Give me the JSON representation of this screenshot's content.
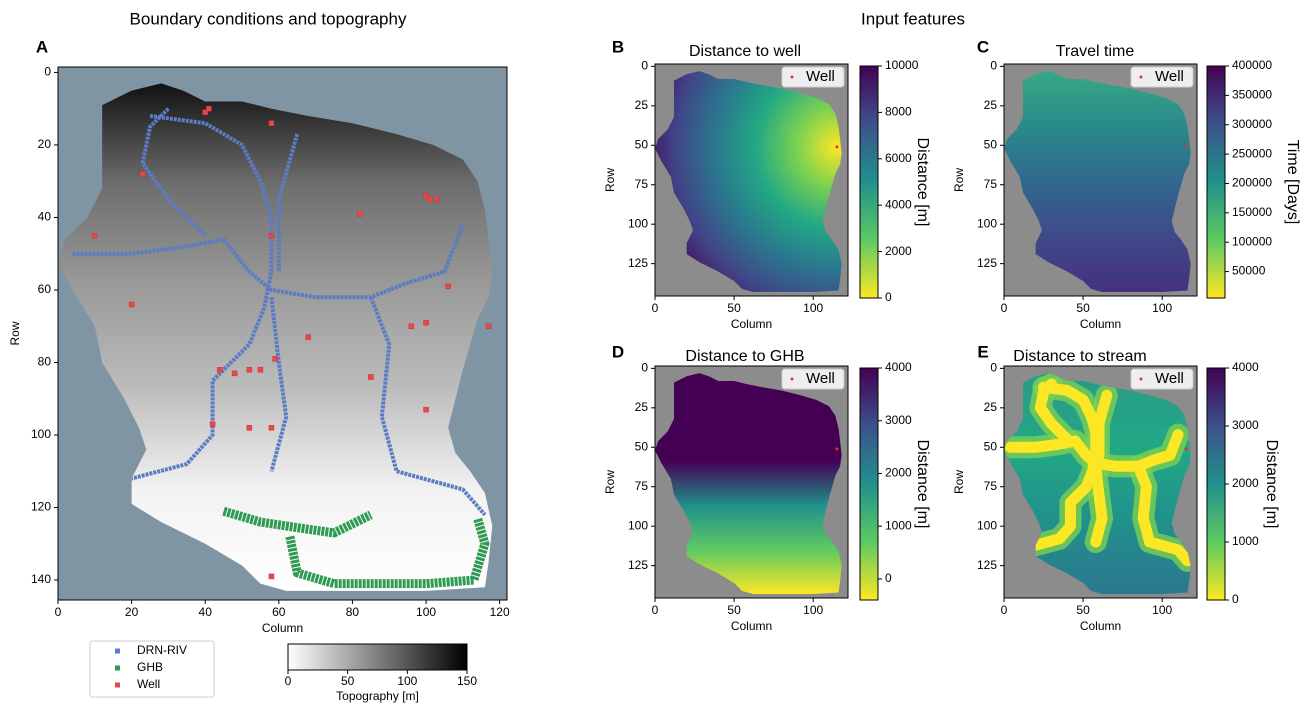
{
  "suptitles": [
    "Boundary conditions and topography",
    "Input features"
  ],
  "chart_data": [
    {
      "type": "map",
      "panel": "A",
      "xlabel": "Column",
      "ylabel": "Row",
      "xlim": [
        0,
        122
      ],
      "ylim": [
        145.5,
        -1.5
      ],
      "xticks": [
        0,
        20,
        40,
        60,
        80,
        100,
        120
      ],
      "yticks": [
        0,
        20,
        40,
        60,
        80,
        100,
        120,
        140
      ],
      "background": "#7f95a3",
      "colorbar": {
        "label": "Topography [m]",
        "orientation": "horizontal",
        "lim": [
          0,
          150
        ],
        "ticks": [
          0,
          50,
          100,
          150
        ],
        "colormap": [
          "#ffffff",
          "#000000"
        ]
      },
      "legend": [
        {
          "name": "DRN-RIV",
          "color": "#5b7bc4"
        },
        {
          "name": "GHB",
          "color": "#2f9a52"
        },
        {
          "name": "Well",
          "color": "#e8484a"
        }
      ],
      "wells": {
        "x": [
          40,
          41,
          58,
          23,
          10,
          58,
          20,
          82,
          100,
          101,
          103,
          68,
          59,
          44,
          48,
          52,
          55,
          85,
          96,
          100,
          117,
          106,
          42,
          52,
          58,
          100,
          58
        ],
        "y": [
          11,
          10,
          14,
          28,
          45,
          45,
          64,
          39,
          34,
          35,
          35,
          73,
          79,
          82,
          83,
          82,
          82,
          84,
          70,
          69,
          70,
          59,
          97,
          98,
          98,
          93,
          139
        ]
      }
    },
    {
      "type": "map",
      "panel": "B",
      "title": "Distance to well",
      "xlabel": "Column",
      "ylabel": "Row",
      "xlim": [
        0,
        122
      ],
      "ylim": [
        145.5,
        -1.5
      ],
      "xticks": [
        0,
        50,
        100
      ],
      "yticks": [
        0,
        25,
        50,
        75,
        100,
        125
      ],
      "background": "#8c8c8c",
      "colorbar": {
        "label": "Distance [m]",
        "orientation": "vertical",
        "lim": [
          0,
          10000
        ],
        "ticks": [
          0,
          2000,
          4000,
          6000,
          8000,
          10000
        ],
        "colormap": [
          "#fde725",
          "#5ec962",
          "#21918c",
          "#3b528b",
          "#440154"
        ]
      },
      "legend": [
        {
          "name": "Well",
          "color": "#e03030"
        }
      ],
      "wells": {
        "x": [
          115
        ],
        "y": [
          51
        ]
      }
    },
    {
      "type": "map",
      "panel": "C",
      "title": "Travel time",
      "xlabel": "Column",
      "ylabel": "Row",
      "xlim": [
        0,
        122
      ],
      "ylim": [
        145.5,
        -1.5
      ],
      "xticks": [
        0,
        50,
        100
      ],
      "yticks": [
        0,
        25,
        50,
        75,
        100,
        125
      ],
      "background": "#8c8c8c",
      "colorbar": {
        "label": "Time [Days]",
        "orientation": "vertical",
        "lim": [
          5000,
          400000
        ],
        "ticks": [
          50000,
          100000,
          150000,
          200000,
          250000,
          300000,
          350000,
          400000
        ],
        "colormap": [
          "#fde725",
          "#5ec962",
          "#21918c",
          "#3b528b",
          "#440154"
        ]
      },
      "legend": [
        {
          "name": "Well",
          "color": "#e03030"
        }
      ],
      "wells": {
        "x": [
          115
        ],
        "y": [
          51
        ]
      }
    },
    {
      "type": "map",
      "panel": "D",
      "title": "Distance to GHB",
      "xlabel": "Column",
      "ylabel": "Row",
      "xlim": [
        0,
        122
      ],
      "ylim": [
        145.5,
        -1.5
      ],
      "xticks": [
        0,
        50,
        100
      ],
      "yticks": [
        0,
        25,
        50,
        75,
        100,
        125
      ],
      "background": "#8c8c8c",
      "colorbar": {
        "label": "Distance [m]",
        "orientation": "vertical",
        "lim": [
          -400,
          4000
        ],
        "ticks": [
          0,
          1000,
          2000,
          3000,
          4000
        ],
        "colormap": [
          "#fde725",
          "#5ec962",
          "#21918c",
          "#3b528b",
          "#440154"
        ]
      },
      "legend": [
        {
          "name": "Well",
          "color": "#e03030"
        }
      ],
      "wells": {
        "x": [
          115
        ],
        "y": [
          51
        ]
      }
    },
    {
      "type": "map",
      "panel": "E",
      "title": "Distance to stream",
      "xlabel": "Column",
      "ylabel": "Row",
      "xlim": [
        0,
        122
      ],
      "ylim": [
        145.5,
        -1.5
      ],
      "xticks": [
        0,
        50,
        100
      ],
      "yticks": [
        0,
        25,
        50,
        75,
        100,
        125
      ],
      "background": "#8c8c8c",
      "colorbar": {
        "label": "Distance [m]",
        "orientation": "vertical",
        "lim": [
          0,
          4000
        ],
        "ticks": [
          0,
          1000,
          2000,
          3000,
          4000
        ],
        "colormap": [
          "#fde725",
          "#5ec962",
          "#21918c",
          "#3b528b",
          "#440154"
        ]
      },
      "legend": [
        {
          "name": "Well",
          "color": "#e03030"
        }
      ],
      "wells": {
        "x": [
          115
        ],
        "y": [
          51
        ]
      }
    }
  ]
}
